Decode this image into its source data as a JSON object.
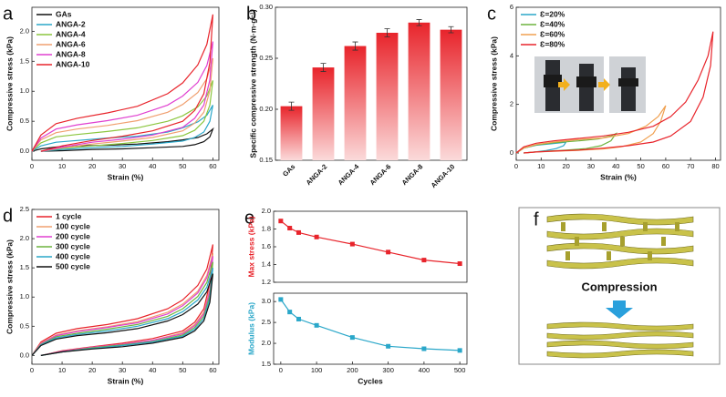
{
  "chart_data": [
    {
      "type": "line",
      "label": "a",
      "xlabel": "Strain (%)",
      "ylabel": "Compressive stress (kPa)",
      "xlim": [
        0,
        62
      ],
      "xticks": [
        0,
        10,
        20,
        30,
        40,
        50,
        60
      ],
      "ylim": [
        -0.15,
        2.4
      ],
      "yticks": [
        {
          "value": 0,
          "label": "0.0"
        },
        0.5,
        {
          "value": 1,
          "label": "1.0"
        },
        1.5,
        {
          "value": 2,
          "label": "2.0"
        }
      ],
      "legend": "upper left",
      "x": [
        0,
        3,
        8,
        15,
        25,
        35,
        45,
        50,
        55,
        58,
        60,
        59,
        57,
        54,
        50,
        40,
        30,
        20,
        10,
        3
      ],
      "series": [
        {
          "name": "GAs",
          "color": "#111111",
          "values": [
            0,
            0.04,
            0.07,
            0.09,
            0.1,
            0.12,
            0.16,
            0.19,
            0.23,
            0.29,
            0.37,
            0.24,
            0.16,
            0.11,
            0.08,
            0.06,
            0.04,
            0.03,
            0.01,
            0
          ]
        },
        {
          "name": "ANGA-2",
          "color": "#2aa7c9",
          "values": [
            0,
            0.09,
            0.15,
            0.18,
            0.22,
            0.25,
            0.32,
            0.39,
            0.49,
            0.6,
            0.77,
            0.5,
            0.32,
            0.23,
            0.17,
            0.12,
            0.08,
            0.06,
            0.03,
            0
          ]
        },
        {
          "name": "ANGA-4",
          "color": "#8cc63f",
          "values": [
            0,
            0.14,
            0.24,
            0.28,
            0.33,
            0.39,
            0.5,
            0.59,
            0.74,
            0.92,
            1.18,
            0.77,
            0.5,
            0.35,
            0.26,
            0.18,
            0.13,
            0.09,
            0.05,
            0
          ]
        },
        {
          "name": "ANGA-6",
          "color": "#f0a070",
          "values": [
            0,
            0.19,
            0.31,
            0.37,
            0.43,
            0.51,
            0.65,
            0.78,
            0.98,
            1.21,
            1.55,
            1.01,
            0.65,
            0.47,
            0.34,
            0.23,
            0.17,
            0.12,
            0.06,
            0
          ]
        },
        {
          "name": "ANGA-8",
          "color": "#e040d0",
          "values": [
            0,
            0.22,
            0.37,
            0.44,
            0.51,
            0.6,
            0.77,
            0.92,
            1.15,
            1.43,
            1.83,
            1.19,
            0.77,
            0.55,
            0.4,
            0.27,
            0.2,
            0.15,
            0.07,
            0
          ]
        },
        {
          "name": "ANGA-10",
          "color": "#e8242b",
          "values": [
            0,
            0.27,
            0.46,
            0.55,
            0.64,
            0.75,
            0.96,
            1.14,
            1.44,
            1.78,
            2.28,
            1.48,
            0.96,
            0.68,
            0.5,
            0.34,
            0.25,
            0.18,
            0.09,
            0
          ]
        }
      ]
    },
    {
      "type": "bar",
      "label": "b",
      "ylabel": "Specific compressive strength (N·m·g⁻¹)",
      "categories": [
        "GAs",
        "ANGA-2",
        "ANGA-4",
        "ANGA-6",
        "ANGA-8",
        "ANGA-10"
      ],
      "values": [
        0.203,
        0.241,
        0.262,
        0.275,
        0.285,
        0.278
      ],
      "errors": [
        0.004,
        0.004,
        0.004,
        0.004,
        0.003,
        0.003
      ],
      "color": "#e8242b",
      "ylim": [
        0.15,
        0.3
      ],
      "yticks": [
        0.15,
        {
          "value": 0.2,
          "label": "0.20"
        },
        0.25,
        {
          "value": 0.3,
          "label": "0.30"
        }
      ]
    },
    {
      "type": "line",
      "label": "c",
      "xlabel": "Strain (%)",
      "ylabel": "Compressive stress (kPa)",
      "xlim": [
        0,
        82
      ],
      "xticks": [
        0,
        10,
        20,
        30,
        40,
        50,
        60,
        70,
        80
      ],
      "ylim": [
        -0.3,
        6
      ],
      "yticks": [
        0,
        2,
        4,
        6
      ],
      "legend": "upper left",
      "series": [
        {
          "name": "Ɛ=20%",
          "color": "#2aa7c9",
          "x": [
            0,
            3,
            8,
            14,
            18,
            20,
            19,
            16,
            12,
            8,
            3
          ],
          "values": [
            0,
            0.2,
            0.32,
            0.38,
            0.42,
            0.45,
            0.3,
            0.18,
            0.1,
            0.05,
            0
          ]
        },
        {
          "name": "Ɛ=40%",
          "color": "#6db33f",
          "x": [
            0,
            3,
            8,
            15,
            25,
            33,
            38,
            40,
            38,
            34,
            28,
            20,
            12,
            6,
            3
          ],
          "values": [
            0,
            0.2,
            0.33,
            0.42,
            0.5,
            0.58,
            0.7,
            0.8,
            0.5,
            0.3,
            0.18,
            0.12,
            0.07,
            0.03,
            0
          ]
        },
        {
          "name": "Ɛ=60%",
          "color": "#f0a050",
          "x": [
            0,
            3,
            8,
            15,
            25,
            35,
            45,
            52,
            57,
            60,
            58,
            55,
            50,
            42,
            35,
            25,
            15,
            8,
            3
          ],
          "values": [
            0,
            0.2,
            0.35,
            0.45,
            0.55,
            0.62,
            0.8,
            1.1,
            1.5,
            1.95,
            1.3,
            0.8,
            0.45,
            0.25,
            0.17,
            0.11,
            0.07,
            0.04,
            0
          ]
        },
        {
          "name": "Ɛ=80%",
          "color": "#e8242b",
          "x": [
            0,
            3,
            8,
            15,
            25,
            35,
            45,
            55,
            62,
            68,
            73,
            77,
            79,
            78,
            75,
            70,
            62,
            55,
            45,
            35,
            25,
            15,
            8,
            3
          ],
          "values": [
            0,
            0.25,
            0.4,
            0.5,
            0.6,
            0.7,
            0.85,
            1.1,
            1.5,
            2.1,
            3.0,
            4.0,
            5.0,
            3.6,
            2.3,
            1.3,
            0.7,
            0.45,
            0.3,
            0.2,
            0.12,
            0.08,
            0.04,
            0
          ]
        }
      ]
    },
    {
      "type": "line",
      "label": "d",
      "xlabel": "Strain (%)",
      "ylabel": "Compressive stress (kPa)",
      "xlim": [
        0,
        62
      ],
      "xticks": [
        0,
        10,
        20,
        30,
        40,
        50,
        60
      ],
      "ylim": [
        -0.15,
        2.5
      ],
      "yticks": [
        {
          "value": 0,
          "label": "0.0"
        },
        0.5,
        {
          "value": 1,
          "label": "1.0"
        },
        1.5,
        {
          "value": 2,
          "label": "2.0"
        },
        2.5
      ],
      "legend": "upper left",
      "x": [
        0,
        3,
        8,
        15,
        25,
        35,
        45,
        50,
        55,
        58,
        60,
        59,
        57,
        54,
        50,
        40,
        30,
        20,
        10,
        3
      ],
      "series": [
        {
          "name": "1 cycle",
          "color": "#e8242b",
          "values": [
            0,
            0.23,
            0.38,
            0.46,
            0.53,
            0.63,
            0.8,
            0.95,
            1.2,
            1.48,
            1.9,
            1.24,
            0.8,
            0.57,
            0.42,
            0.29,
            0.21,
            0.15,
            0.08,
            0
          ]
        },
        {
          "name": "100 cycle",
          "color": "#f0a070",
          "values": [
            0,
            0.21,
            0.35,
            0.42,
            0.49,
            0.58,
            0.74,
            0.88,
            1.1,
            1.37,
            1.75,
            1.14,
            0.74,
            0.53,
            0.39,
            0.26,
            0.19,
            0.14,
            0.07,
            0
          ]
        },
        {
          "name": "200 cycle",
          "color": "#e040d0",
          "values": [
            0,
            0.2,
            0.34,
            0.41,
            0.48,
            0.56,
            0.71,
            0.85,
            1.07,
            1.33,
            1.7,
            1.11,
            0.71,
            0.51,
            0.37,
            0.26,
            0.19,
            0.14,
            0.07,
            0
          ]
        },
        {
          "name": "300 cycle",
          "color": "#6db33f",
          "values": [
            0,
            0.19,
            0.32,
            0.38,
            0.45,
            0.53,
            0.67,
            0.8,
            1.01,
            1.25,
            1.6,
            1.04,
            0.67,
            0.48,
            0.35,
            0.24,
            0.18,
            0.13,
            0.06,
            0
          ]
        },
        {
          "name": "400 cycle",
          "color": "#2aa7c9",
          "values": [
            0,
            0.18,
            0.3,
            0.36,
            0.42,
            0.5,
            0.63,
            0.75,
            0.95,
            1.17,
            1.5,
            0.98,
            0.63,
            0.45,
            0.33,
            0.23,
            0.17,
            0.12,
            0.06,
            0
          ]
        },
        {
          "name": "500 cycle",
          "color": "#111111",
          "values": [
            0,
            0.17,
            0.28,
            0.34,
            0.39,
            0.46,
            0.59,
            0.7,
            0.88,
            1.09,
            1.4,
            0.91,
            0.59,
            0.42,
            0.31,
            0.21,
            0.15,
            0.11,
            0.06,
            0
          ]
        }
      ]
    },
    {
      "type": "line",
      "label": "e",
      "ylabel": "Max stress (kPa)",
      "ylabel_color": "#e8242b",
      "markers": true,
      "xlim": [
        -20,
        520
      ],
      "ylim": [
        1.2,
        2.0
      ],
      "yticks": [
        1.2,
        1.4,
        1.6,
        1.8,
        {
          "value": 2,
          "label": "2.0"
        }
      ],
      "x": [
        0,
        25,
        50,
        100,
        200,
        300,
        400,
        500
      ],
      "series": [
        {
          "name": "Max stress",
          "color": "#e8242b",
          "values": [
            1.89,
            1.81,
            1.76,
            1.71,
            1.63,
            1.54,
            1.45,
            1.41
          ]
        }
      ]
    },
    {
      "type": "line",
      "xlabel": "Cycles",
      "ylabel": "Modulus (kPa)",
      "ylabel_color": "#2aa7c9",
      "markers": true,
      "xlim": [
        -20,
        520
      ],
      "xticks": [
        0,
        100,
        200,
        300,
        400,
        500
      ],
      "ylim": [
        1.5,
        3.2
      ],
      "yticks": [
        1.5,
        {
          "value": 2,
          "label": "2.0"
        },
        2.5,
        {
          "value": 3,
          "label": "3.0"
        }
      ],
      "x": [
        0,
        25,
        50,
        100,
        200,
        300,
        400,
        500
      ],
      "series": [
        {
          "name": "Modulus",
          "color": "#2aa7c9",
          "values": [
            3.05,
            2.75,
            2.58,
            2.43,
            2.14,
            1.93,
            1.87,
            1.83
          ]
        }
      ]
    }
  ],
  "diagram": {
    "label": "f",
    "text": "Compression"
  }
}
